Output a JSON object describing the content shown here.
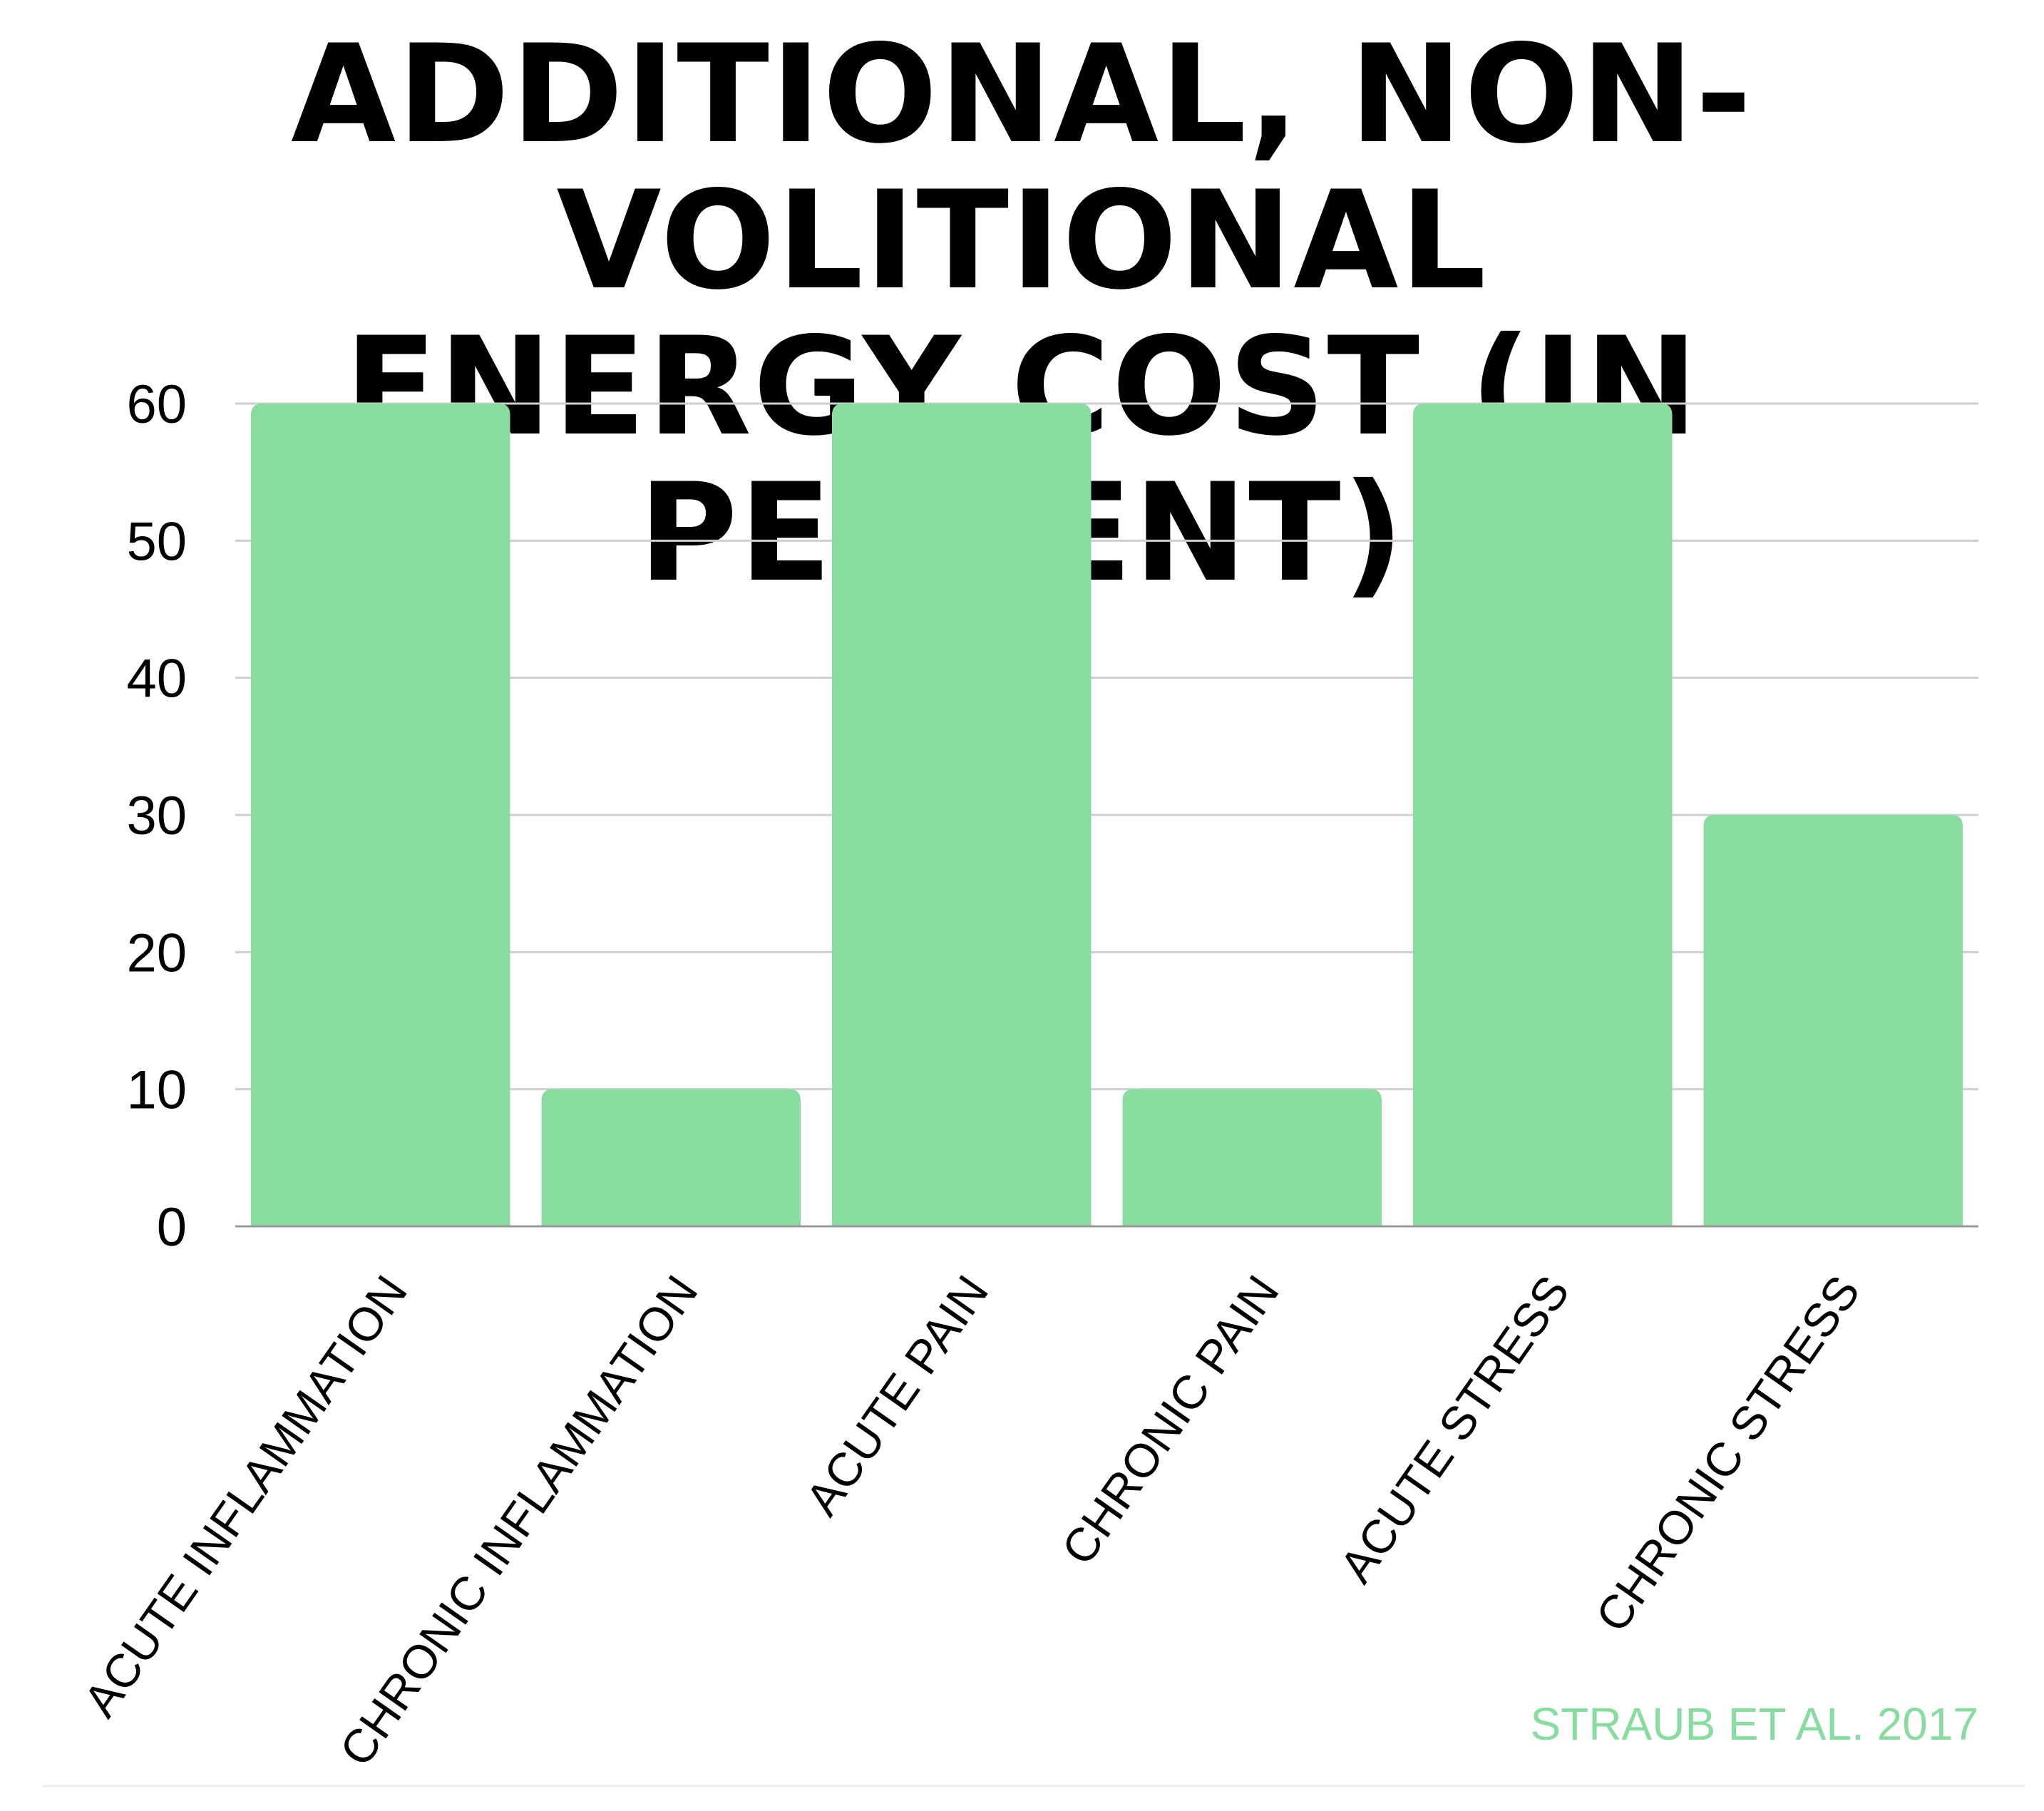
{
  "chart_data": {
    "type": "bar",
    "title_lines": [
      "ADDITIONAL, NON-VOLITIONAL",
      "ENERGY COST (IN PERCENT)"
    ],
    "categories": [
      "ACUTE INFLAMMATION",
      "CHRONIC INFLAMMATION",
      "ACUTE PAIN",
      "CHRONIC PAIN",
      "ACUTE STRESS",
      "CHRONIC STRESS"
    ],
    "values": [
      60,
      10,
      60,
      10,
      60,
      30
    ],
    "xlabel": "",
    "ylabel": "",
    "ylim": [
      0,
      60
    ],
    "yticks": [
      "0",
      "10",
      "20",
      "30",
      "40",
      "50",
      "60"
    ],
    "grid": true,
    "legend": "none",
    "bar_color": "#88DCA0",
    "source": "STRAUB ET AL. 2017"
  }
}
